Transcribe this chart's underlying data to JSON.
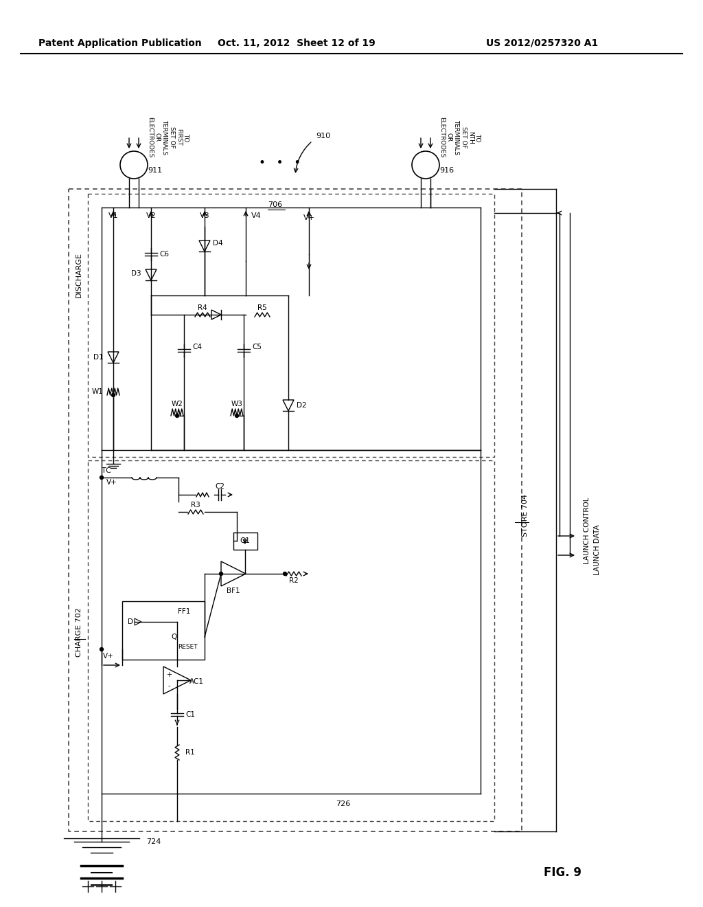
{
  "title_left": "Patent Application Publication",
  "title_mid": "Oct. 11, 2012  Sheet 12 of 19",
  "title_right": "US 2012/0257320 A1",
  "fig_label": "FIG. 9",
  "bg_color": "#ffffff",
  "line_color": "#000000",
  "text_color": "#000000"
}
